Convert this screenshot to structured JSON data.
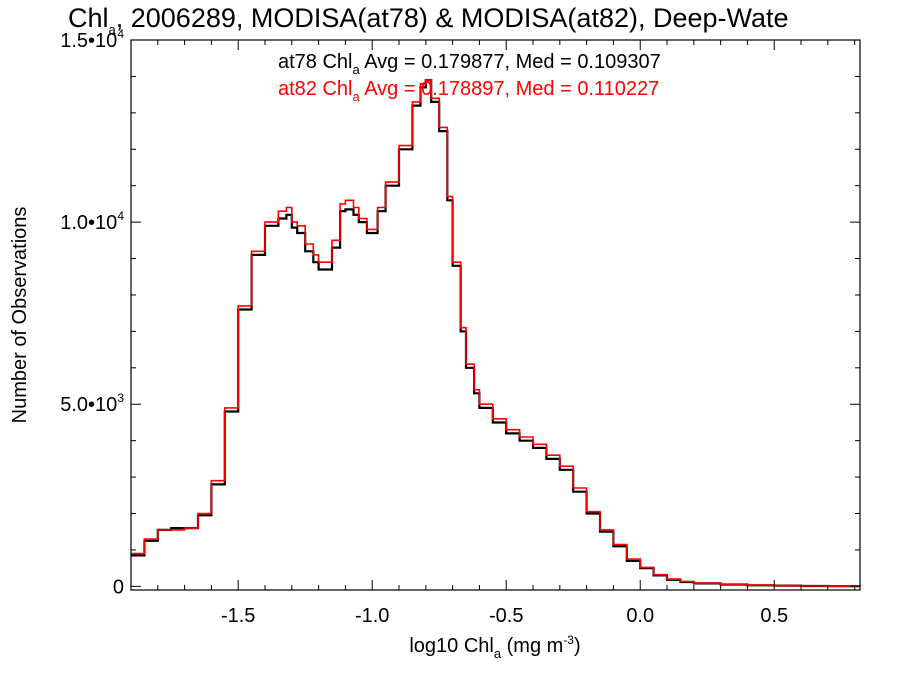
{
  "chart_data": {
    "type": "line",
    "title": {
      "prefix": "Chl",
      "subscript": "a",
      "suffix": ", 2006289, MODISA(at78) & MODISA(at82), Deep-Wate"
    },
    "xlabel": {
      "prefix": "log10 Chl",
      "subscript": "a",
      "units": " (mg m",
      "units_sup": "-3",
      "units_end": ")"
    },
    "ylabel": "Number of Observations",
    "xlim": [
      -1.9,
      0.82
    ],
    "ylim": [
      -100,
      15000
    ],
    "xticks": [
      {
        "value": -1.5,
        "label": "-1.5"
      },
      {
        "value": -1.0,
        "label": "-1.0"
      },
      {
        "value": -0.5,
        "label": "-0.5"
      },
      {
        "value": 0.0,
        "label": "0.0"
      },
      {
        "value": 0.5,
        "label": "0.5"
      }
    ],
    "yticks": [
      {
        "value": 0,
        "mantissa": "0",
        "exp": ""
      },
      {
        "value": 5000,
        "mantissa": "5.0•10",
        "exp": "3"
      },
      {
        "value": 10000,
        "mantissa": "1.0•10",
        "exp": "4"
      },
      {
        "value": 15000,
        "mantissa": "1.5•10",
        "exp": "4"
      }
    ],
    "annotations": [
      {
        "prefix": "at78 Chl",
        "subscript": "a",
        "suffix": " Avg = 0.179877, Med = 0.109307",
        "color": "#000000"
      },
      {
        "prefix": "at82 Chl",
        "subscript": "a",
        "suffix": " Avg = 0.178897, Med = 0.110227",
        "color": "#ff0000"
      }
    ],
    "series": [
      {
        "color": "#000000",
        "x": [
          -1.9,
          -1.85,
          -1.8,
          -1.75,
          -1.7,
          -1.65,
          -1.6,
          -1.55,
          -1.5,
          -1.45,
          -1.4,
          -1.35,
          -1.32,
          -1.3,
          -1.28,
          -1.25,
          -1.22,
          -1.2,
          -1.15,
          -1.12,
          -1.1,
          -1.07,
          -1.05,
          -1.02,
          -1.0,
          -0.98,
          -0.95,
          -0.9,
          -0.85,
          -0.82,
          -0.8,
          -0.78,
          -0.75,
          -0.72,
          -0.7,
          -0.67,
          -0.65,
          -0.62,
          -0.6,
          -0.55,
          -0.5,
          -0.45,
          -0.42,
          -0.4,
          -0.35,
          -0.3,
          -0.25,
          -0.2,
          -0.15,
          -0.1,
          -0.05,
          0.0,
          0.05,
          0.1,
          0.15,
          0.2,
          0.3,
          0.4,
          0.5,
          0.6,
          0.7,
          0.82
        ],
        "y": [
          850,
          1250,
          1550,
          1600,
          1600,
          1950,
          2800,
          4800,
          7600,
          9100,
          9900,
          10100,
          10200,
          9850,
          9700,
          9200,
          8900,
          8700,
          9300,
          10300,
          10350,
          10200,
          10000,
          9700,
          9700,
          10300,
          11000,
          12000,
          13200,
          13700,
          13900,
          13300,
          12500,
          10600,
          8800,
          7000,
          6000,
          5300,
          4900,
          4500,
          4200,
          4000,
          4000,
          3800,
          3500,
          3200,
          2600,
          2000,
          1500,
          1100,
          700,
          500,
          300,
          180,
          120,
          80,
          50,
          30,
          20,
          10,
          5,
          0
        ]
      },
      {
        "color": "#ff0000",
        "x": [
          -1.9,
          -1.85,
          -1.8,
          -1.75,
          -1.7,
          -1.65,
          -1.6,
          -1.55,
          -1.5,
          -1.45,
          -1.4,
          -1.35,
          -1.32,
          -1.3,
          -1.28,
          -1.25,
          -1.22,
          -1.2,
          -1.15,
          -1.12,
          -1.1,
          -1.07,
          -1.05,
          -1.02,
          -1.0,
          -0.98,
          -0.95,
          -0.9,
          -0.85,
          -0.82,
          -0.8,
          -0.78,
          -0.75,
          -0.72,
          -0.7,
          -0.67,
          -0.65,
          -0.62,
          -0.6,
          -0.55,
          -0.5,
          -0.45,
          -0.42,
          -0.4,
          -0.35,
          -0.3,
          -0.25,
          -0.2,
          -0.15,
          -0.1,
          -0.05,
          0.0,
          0.05,
          0.1,
          0.15,
          0.2,
          0.3,
          0.4,
          0.5,
          0.6,
          0.7,
          0.82
        ],
        "y": [
          900,
          1300,
          1550,
          1550,
          1600,
          2000,
          2900,
          4900,
          7700,
          9200,
          10000,
          10300,
          10400,
          10000,
          9900,
          9400,
          9100,
          8900,
          9500,
          10500,
          10600,
          10400,
          10100,
          9800,
          9800,
          10400,
          11100,
          12100,
          13300,
          13800,
          13900,
          13400,
          12600,
          10700,
          8900,
          7100,
          6100,
          5400,
          5000,
          4600,
          4300,
          4100,
          4100,
          3900,
          3600,
          3300,
          2700,
          2050,
          1550,
          1150,
          750,
          520,
          320,
          200,
          130,
          90,
          60,
          35,
          20,
          10,
          5,
          0
        ]
      }
    ]
  }
}
